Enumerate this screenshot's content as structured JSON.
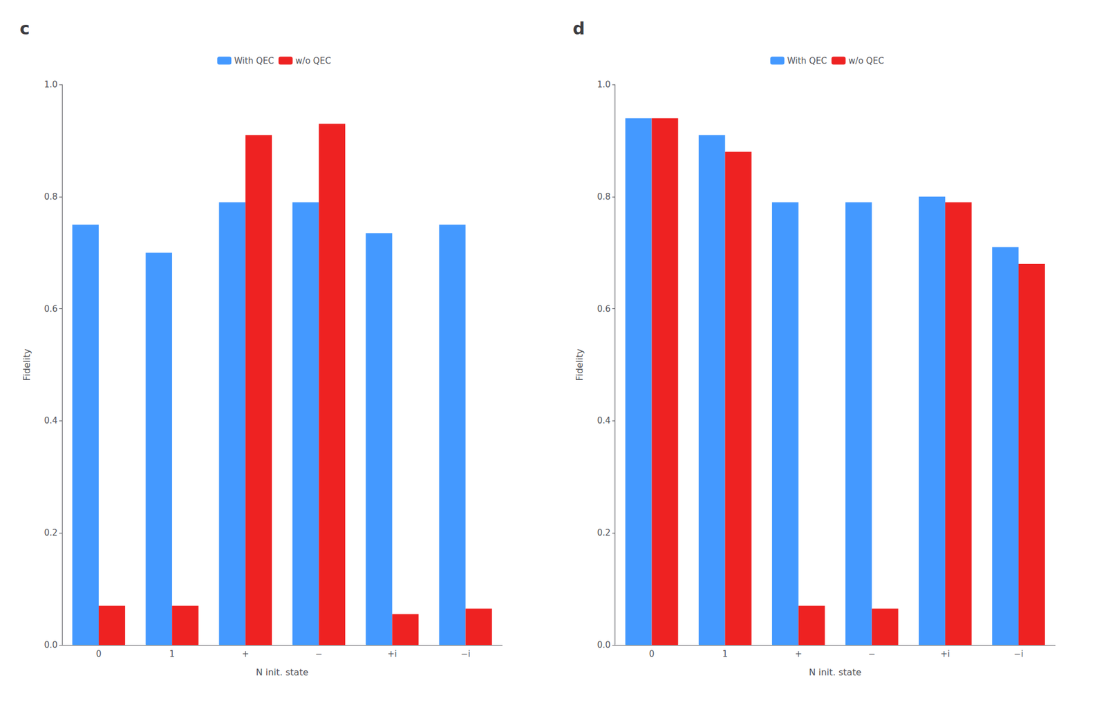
{
  "chart_data": [
    {
      "type": "bar",
      "title": "c",
      "categories": [
        "0",
        "1",
        "+",
        "−",
        "+i",
        "−i"
      ],
      "series": [
        {
          "name": "With QEC",
          "color": "#4499FF",
          "values": [
            0.75,
            0.7,
            0.79,
            0.79,
            0.735,
            0.75
          ]
        },
        {
          "name": "w/o QEC",
          "color": "#EE2222",
          "values": [
            0.07,
            0.07,
            0.91,
            0.93,
            0.055,
            0.065
          ]
        }
      ],
      "xlabel": "N init. state",
      "ylabel": "Fidelity",
      "ylim": [
        0,
        1.0
      ],
      "yticks": [
        {
          "value": 0,
          "label": "0.0"
        },
        0.2,
        0.4,
        0.6,
        0.8,
        {
          "value": 1.0,
          "label": "1.0"
        }
      ],
      "grid": false,
      "legend": "top"
    },
    {
      "type": "bar",
      "title": "d",
      "categories": [
        "0",
        "1",
        "+",
        "−",
        "+i",
        "−i"
      ],
      "series": [
        {
          "name": "With QEC",
          "color": "#4499FF",
          "values": [
            0.94,
            0.91,
            0.79,
            0.79,
            0.8,
            0.71
          ]
        },
        {
          "name": "w/o QEC",
          "color": "#EE2222",
          "values": [
            0.94,
            0.88,
            0.07,
            0.065,
            0.79,
            0.68
          ]
        }
      ],
      "xlabel": "N init. state",
      "ylabel": "Fidelity",
      "ylim": [
        0,
        1.0
      ],
      "yticks": [
        {
          "value": 0,
          "label": "0.0"
        },
        0.2,
        0.4,
        0.6,
        0.8,
        {
          "value": 1.0,
          "label": "1.0"
        }
      ],
      "grid": false,
      "legend": "top"
    }
  ]
}
